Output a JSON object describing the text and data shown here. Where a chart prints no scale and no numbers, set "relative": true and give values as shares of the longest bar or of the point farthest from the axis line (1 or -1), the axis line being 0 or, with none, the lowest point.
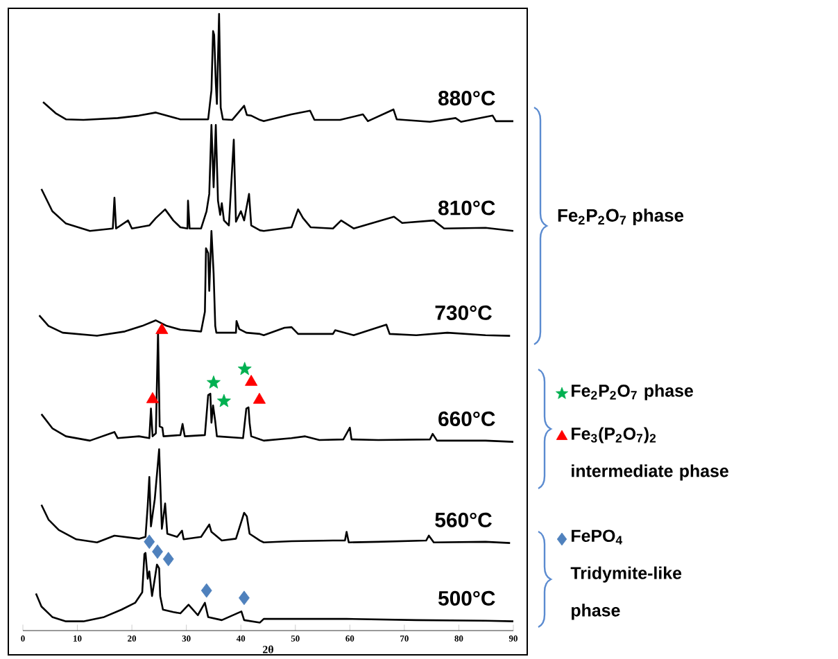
{
  "chart_data": {
    "type": "line",
    "relative": true,
    "xlabel": "2θ",
    "xlim": [
      0,
      90
    ],
    "xticks": [
      0,
      10,
      20,
      30,
      40,
      50,
      60,
      70,
      80,
      90
    ],
    "legend": "right",
    "annotations": [
      "Fe$_{2}$P$_{2}$O$_{7}$ phase"
    ],
    "series": [
      {
        "name": "880°C",
        "color": "#000000",
        "x": [
          3.7,
          6.0,
          7.9,
          11.1,
          17.4,
          21.3,
          24.4,
          28.9,
          34.0,
          34.6,
          34.9,
          35.1,
          35.4,
          35.6,
          36.0,
          36.3,
          36.7,
          38.4,
          40.6,
          41.1,
          41.9,
          43.5,
          44.2,
          49.3,
          52.7,
          53.5,
          58.2,
          62.4,
          63.3,
          68.0,
          68.6,
          74.7,
          79.4,
          80.4,
          86.2,
          86.8,
          90.0
        ],
        "values": [
          0.857,
          0.839,
          0.829,
          0.828,
          0.831,
          0.835,
          0.84,
          0.829,
          0.829,
          0.876,
          0.972,
          0.966,
          0.888,
          0.854,
          1.0,
          0.848,
          0.829,
          0.828,
          0.851,
          0.836,
          0.835,
          0.828,
          0.826,
          0.837,
          0.843,
          0.828,
          0.828,
          0.837,
          0.826,
          0.845,
          0.829,
          0.825,
          0.831,
          0.825,
          0.835,
          0.826,
          0.826
        ]
      },
      {
        "name": "810°C",
        "color": "#000000",
        "x": [
          3.4,
          5.4,
          7.9,
          12.3,
          16.5,
          16.8,
          17.1,
          19.3,
          20.0,
          23.2,
          24.4,
          26.1,
          27.6,
          28.9,
          30.2,
          30.3,
          30.6,
          32.7,
          33.7,
          34.2,
          34.6,
          35.0,
          35.4,
          35.8,
          36.2,
          36.5,
          36.9,
          37.8,
          38.7,
          39.1,
          40.0,
          40.6,
          41.5,
          41.9,
          43.5,
          44.2,
          49.3,
          50.5,
          51.4,
          52.8,
          56.9,
          58.4,
          60.7,
          68.1,
          69.6,
          75.4,
          77.3,
          84.9,
          90.0
        ],
        "values": [
          0.716,
          0.68,
          0.66,
          0.648,
          0.652,
          0.702,
          0.652,
          0.665,
          0.652,
          0.657,
          0.669,
          0.683,
          0.665,
          0.654,
          0.652,
          0.697,
          0.652,
          0.652,
          0.68,
          0.708,
          0.82,
          0.719,
          0.82,
          0.697,
          0.674,
          0.693,
          0.665,
          0.657,
          0.796,
          0.663,
          0.68,
          0.665,
          0.708,
          0.657,
          0.649,
          0.648,
          0.654,
          0.683,
          0.669,
          0.654,
          0.652,
          0.665,
          0.652,
          0.671,
          0.661,
          0.665,
          0.652,
          0.653,
          0.648
        ]
      },
      {
        "name": "730°C",
        "color": "#000000",
        "x": [
          3.0,
          4.7,
          7.3,
          13.6,
          18.7,
          21.9,
          24.4,
          26.4,
          28.9,
          32.7,
          33.4,
          33.6,
          34.0,
          34.2,
          34.6,
          35.0,
          35.3,
          35.5,
          39.1,
          39.2,
          39.7,
          41.0,
          43.5,
          44.2,
          48.0,
          49.3,
          50.5,
          56.9,
          57.3,
          60.7,
          66.7,
          67.3,
          72.2,
          77.9,
          84.9,
          89.4
        ],
        "values": [
          0.511,
          0.494,
          0.483,
          0.478,
          0.485,
          0.494,
          0.503,
          0.494,
          0.488,
          0.485,
          0.517,
          0.62,
          0.612,
          0.551,
          0.648,
          0.579,
          0.494,
          0.483,
          0.483,
          0.502,
          0.489,
          0.483,
          0.481,
          0.479,
          0.491,
          0.492,
          0.481,
          0.481,
          0.487,
          0.479,
          0.496,
          0.481,
          0.479,
          0.483,
          0.479,
          0.478
        ]
      },
      {
        "name": "660°C",
        "color": "#000000",
        "x": [
          3.4,
          5.4,
          7.9,
          12.3,
          16.8,
          17.4,
          21.3,
          23.2,
          23.5,
          23.8,
          24.4,
          24.8,
          25.1,
          25.6,
          25.8,
          28.9,
          29.3,
          29.7,
          33.4,
          34.0,
          34.4,
          34.6,
          34.9,
          35.3,
          35.6,
          40.4,
          41.0,
          41.4,
          41.6,
          41.9,
          43.5,
          44.2,
          49.3,
          51.8,
          54.4,
          58.8,
          60.0,
          60.3,
          65.2,
          74.7,
          75.2,
          76.0,
          84.9,
          90.0
        ],
        "values": [
          0.351,
          0.328,
          0.315,
          0.308,
          0.322,
          0.312,
          0.315,
          0.312,
          0.36,
          0.315,
          0.32,
          0.485,
          0.331,
          0.329,
          0.315,
          0.317,
          0.335,
          0.315,
          0.317,
          0.382,
          0.384,
          0.337,
          0.365,
          0.339,
          0.315,
          0.312,
          0.36,
          0.362,
          0.337,
          0.315,
          0.31,
          0.308,
          0.312,
          0.315,
          0.309,
          0.31,
          0.329,
          0.31,
          0.309,
          0.31,
          0.319,
          0.308,
          0.308,
          0.306
        ]
      },
      {
        "name": "560°C",
        "color": "#000000",
        "x": [
          3.4,
          4.7,
          6.6,
          9.8,
          13.6,
          16.8,
          21.3,
          22.5,
          22.9,
          23.2,
          23.5,
          24.2,
          25.0,
          25.5,
          26.1,
          26.5,
          28.3,
          29.2,
          29.5,
          32.7,
          34.2,
          34.6,
          36.5,
          39.1,
          40.6,
          41.1,
          41.6,
          43.5,
          44.2,
          49.3,
          56.9,
          59.1,
          59.4,
          59.8,
          65.2,
          74.0,
          74.5,
          75.4,
          84.9,
          89.4
        ],
        "values": [
          0.204,
          0.18,
          0.163,
          0.148,
          0.143,
          0.154,
          0.149,
          0.152,
          0.202,
          0.249,
          0.169,
          0.213,
          0.294,
          0.165,
          0.206,
          0.157,
          0.152,
          0.162,
          0.148,
          0.152,
          0.172,
          0.16,
          0.146,
          0.149,
          0.191,
          0.185,
          0.157,
          0.146,
          0.143,
          0.145,
          0.146,
          0.146,
          0.16,
          0.143,
          0.144,
          0.146,
          0.154,
          0.143,
          0.144,
          0.142
        ]
      },
      {
        "name": "500°C",
        "color": "#000000",
        "x": [
          2.4,
          3.4,
          5.4,
          7.9,
          11.1,
          14.9,
          18.1,
          20.6,
          21.9,
          22.3,
          22.5,
          22.9,
          23.2,
          23.7,
          24.2,
          24.6,
          25.0,
          25.2,
          25.7,
          27.6,
          28.9,
          30.4,
          32.1,
          33.4,
          34.0,
          36.5,
          40.1,
          40.6,
          43.5,
          44.2,
          53.1,
          59.4,
          72.2,
          84.9,
          90.0
        ],
        "values": [
          0.06,
          0.039,
          0.022,
          0.015,
          0.015,
          0.022,
          0.034,
          0.045,
          0.062,
          0.124,
          0.126,
          0.084,
          0.096,
          0.056,
          0.084,
          0.107,
          0.101,
          0.056,
          0.034,
          0.03,
          0.028,
          0.042,
          0.025,
          0.045,
          0.022,
          0.017,
          0.031,
          0.017,
          0.013,
          0.019,
          0.019,
          0.019,
          0.017,
          0.016,
          0.015
        ]
      },
      {
        "type": "scatter",
        "marker": "star",
        "name": "Fe$_{2}$P$_{2}$O$_{7}$ phase",
        "color": "#00b050",
        "x": [
          35.0,
          40.7,
          36.9
        ],
        "values": [
          0.402,
          0.424,
          0.372
        ]
      },
      {
        "type": "scatter",
        "marker": "triangle",
        "name": "Fe$_{3}$(P$_{2}$O$_{7}$)$_{2}$ intermediate phase",
        "color": "#ff0000",
        "x": [
          25.5,
          23.8,
          41.9,
          43.4
        ],
        "values": [
          0.487,
          0.375,
          0.403,
          0.374
        ]
      },
      {
        "type": "scatter",
        "marker": "diamond",
        "name": "FePO$_{4}$ Tridymite-like phase",
        "color": "#4f81bd",
        "x": [
          23.2,
          24.7,
          26.7,
          33.7,
          40.6
        ],
        "values": [
          0.144,
          0.128,
          0.116,
          0.065,
          0.053
        ]
      }
    ]
  }
}
